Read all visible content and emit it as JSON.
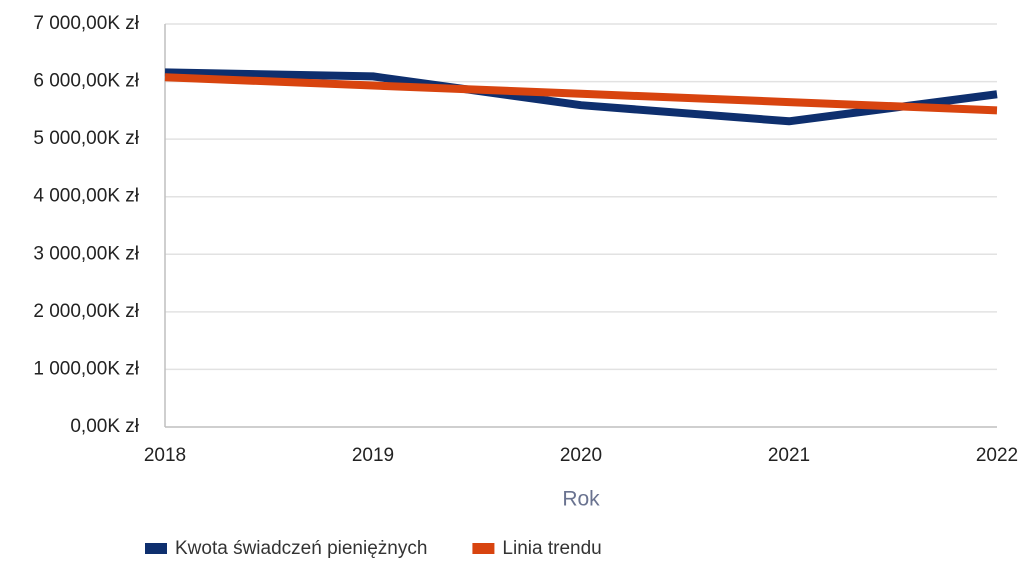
{
  "chart_data": {
    "type": "line",
    "categories": [
      "2018",
      "2019",
      "2020",
      "2021",
      "2022"
    ],
    "series": [
      {
        "name": "Kwota świadczeń pieniężnych",
        "color": "#0e2f6e",
        "values": [
          6160,
          6090,
          5590,
          5310,
          5780
        ]
      },
      {
        "name": "Linia trendu",
        "color": "#d8440f",
        "values": [
          6075,
          5931,
          5788,
          5644,
          5500
        ]
      }
    ],
    "xlabel": "Rok",
    "ylim": [
      0,
      7000
    ],
    "yticks": [
      {
        "value": 0,
        "label": "0,00K zł"
      },
      {
        "value": 1000,
        "label": "1 000,00K zł"
      },
      {
        "value": 2000,
        "label": "2 000,00K zł"
      },
      {
        "value": 3000,
        "label": "3 000,00K zł"
      },
      {
        "value": 4000,
        "label": "4 000,00K zł"
      },
      {
        "value": 5000,
        "label": "5 000,00K zł"
      },
      {
        "value": 6000,
        "label": "6 000,00K zł"
      },
      {
        "value": 7000,
        "label": "7 000,00K zł"
      }
    ],
    "grid": true,
    "legend": "bottom"
  }
}
